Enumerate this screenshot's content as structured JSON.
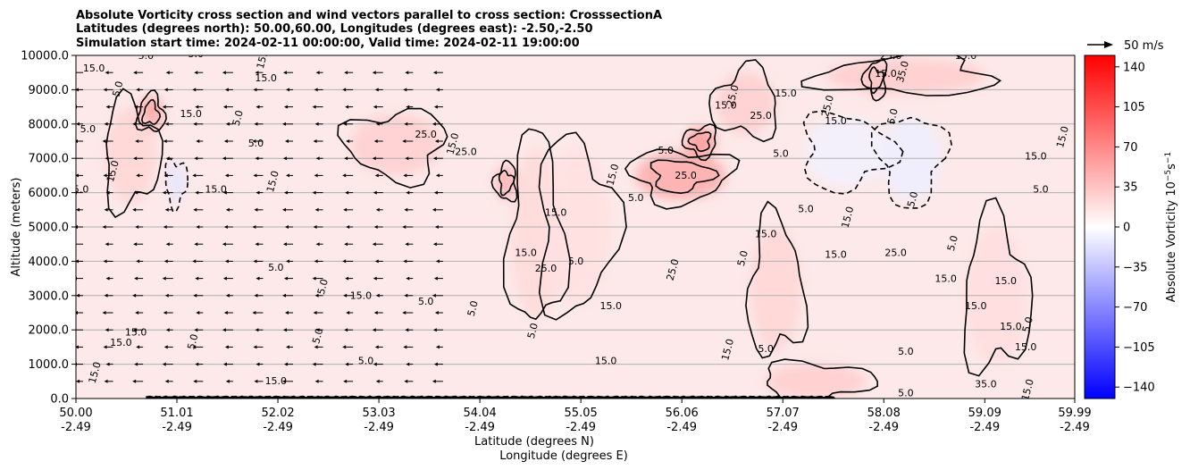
{
  "chart_data": {
    "type": "heatmap",
    "title_lines": [
      "Absolute Vorticity cross section and wind vectors parallel to cross section: CrosssectionA",
      "Latitudes (degrees north): 50.00,60.00, Longitudes (degrees east): -2.50,-2.50",
      "Simulation start time: 2024-02-11 00:00:00, Valid time: 2024-02-11 19:00:00"
    ],
    "xlabel_line1": "Latitude (degrees N)",
    "xlabel_line2": "Longitude (degrees E)",
    "ylabel": "Altitude (meters)",
    "xlim": [
      50.0,
      59.99
    ],
    "ylim": [
      0,
      10000
    ],
    "x_ticks": [
      {
        "lat": "50.00",
        "lon": "-2.49",
        "value": 50.0
      },
      {
        "lat": "51.01",
        "lon": "-2.49",
        "value": 51.01
      },
      {
        "lat": "52.02",
        "lon": "-2.49",
        "value": 52.02
      },
      {
        "lat": "53.03",
        "lon": "-2.49",
        "value": 53.03
      },
      {
        "lat": "54.04",
        "lon": "-2.49",
        "value": 54.04
      },
      {
        "lat": "55.05",
        "lon": "-2.49",
        "value": 55.05
      },
      {
        "lat": "56.06",
        "lon": "-2.49",
        "value": 56.06
      },
      {
        "lat": "57.07",
        "lon": "-2.49",
        "value": 57.07
      },
      {
        "lat": "58.08",
        "lon": "-2.49",
        "value": 58.08
      },
      {
        "lat": "59.09",
        "lon": "-2.49",
        "value": 59.09
      },
      {
        "lat": "59.99",
        "lon": "-2.49",
        "value": 59.99
      }
    ],
    "y_ticks": [
      {
        "label": "0.0",
        "value": 0
      },
      {
        "label": "1000.0",
        "value": 1000
      },
      {
        "label": "2000.0",
        "value": 2000
      },
      {
        "label": "3000.0",
        "value": 3000
      },
      {
        "label": "4000.0",
        "value": 4000
      },
      {
        "label": "5000.0",
        "value": 5000
      },
      {
        "label": "6000.0",
        "value": 6000
      },
      {
        "label": "7000.0",
        "value": 7000
      },
      {
        "label": "8000.0",
        "value": 8000
      },
      {
        "label": "9000.0",
        "value": 9000
      },
      {
        "label": "10000.0",
        "value": 10000
      }
    ],
    "grid": "horizontal",
    "colorbar": {
      "label": "Absolute Vorticity 10",
      "label_exponent": "−5",
      "label_unit": "s",
      "label_unit_exponent": "−1",
      "range": [
        -150,
        150
      ],
      "colormap": "bwr",
      "ticks": [
        {
          "label": "140",
          "value": 140
        },
        {
          "label": "105",
          "value": 105
        },
        {
          "label": "70",
          "value": 70
        },
        {
          "label": "35",
          "value": 35
        },
        {
          "label": "0",
          "value": 0
        },
        {
          "label": "−35",
          "value": -35
        },
        {
          "label": "−70",
          "value": -70
        },
        {
          "label": "−105",
          "value": -105
        },
        {
          "label": "−140",
          "value": -140
        }
      ]
    },
    "quiver_key": {
      "label": "50 m/s",
      "reference_speed": 50
    },
    "wind_vectors": {
      "x_positions": [
        50.0,
        50.3,
        50.6,
        50.9,
        51.2,
        51.5,
        51.8,
        52.1,
        52.4,
        52.7,
        53.0,
        53.3,
        53.6
      ],
      "levels": [
        500,
        1000,
        1500,
        2000,
        2500,
        3000,
        3500,
        4000,
        4500,
        5000,
        5500,
        6000,
        6500,
        7000,
        7500,
        8000,
        8500,
        9000,
        9500
      ],
      "direction": "southward"
    },
    "contour_labels": [
      {
        "text": "15.0",
        "x": 50.18,
        "y": 9530
      },
      {
        "text": "5.0",
        "x": 50.45,
        "y": 9000
      },
      {
        "text": "5.0",
        "x": 50.7,
        "y": 9900
      },
      {
        "text": "5.0",
        "x": 51.2,
        "y": 9950
      },
      {
        "text": "15.0",
        "x": 51.9,
        "y": 9900
      },
      {
        "text": "15.0",
        "x": 52.35,
        "y": 10000
      },
      {
        "text": "5.0",
        "x": 50.12,
        "y": 7760
      },
      {
        "text": "15.0",
        "x": 50.4,
        "y": 6600
      },
      {
        "text": "5.0",
        "x": 50.05,
        "y": 6000
      },
      {
        "text": "15.0",
        "x": 51.9,
        "y": 9250
      },
      {
        "text": "5.0",
        "x": 51.65,
        "y": 8150
      },
      {
        "text": "15.0",
        "x": 51.15,
        "y": 8200
      },
      {
        "text": "15.0",
        "x": 51.4,
        "y": 6000
      },
      {
        "text": "15.0",
        "x": 52.0,
        "y": 6300
      },
      {
        "text": "5.0",
        "x": 51.8,
        "y": 7350
      },
      {
        "text": "5.0",
        "x": 52.0,
        "y": 3730
      },
      {
        "text": "5.0",
        "x": 52.5,
        "y": 3230
      },
      {
        "text": "15.0",
        "x": 52.85,
        "y": 2900
      },
      {
        "text": "25.0",
        "x": 53.5,
        "y": 7600
      },
      {
        "text": "15.0",
        "x": 53.8,
        "y": 7400
      },
      {
        "text": "25.0",
        "x": 53.9,
        "y": 7100
      },
      {
        "text": "15.0",
        "x": 54.8,
        "y": 5320
      },
      {
        "text": "5.0",
        "x": 54.6,
        "y": 1950
      },
      {
        "text": "15.0",
        "x": 54.5,
        "y": 4160
      },
      {
        "text": "25.0",
        "x": 54.7,
        "y": 3700
      },
      {
        "text": "5.0",
        "x": 54.0,
        "y": 2600
      },
      {
        "text": "5.0",
        "x": 55.0,
        "y": 3900
      },
      {
        "text": "15.0",
        "x": 55.35,
        "y": 2600
      },
      {
        "text": "15.0",
        "x": 55.4,
        "y": 6500
      },
      {
        "text": "5.0",
        "x": 55.9,
        "y": 7130
      },
      {
        "text": "5.0",
        "x": 55.6,
        "y": 5750
      },
      {
        "text": "25.0",
        "x": 56.0,
        "y": 3730
      },
      {
        "text": "25.0",
        "x": 56.1,
        "y": 6400
      },
      {
        "text": "15.0",
        "x": 56.5,
        "y": 8450
      },
      {
        "text": "25.0",
        "x": 56.6,
        "y": 8800
      },
      {
        "text": "25.0",
        "x": 56.85,
        "y": 8150
      },
      {
        "text": "15.0",
        "x": 56.9,
        "y": 4700
      },
      {
        "text": "5.0",
        "x": 56.7,
        "y": 4060
      },
      {
        "text": "5.0",
        "x": 57.05,
        "y": 7050
      },
      {
        "text": "15.0",
        "x": 57.1,
        "y": 8800
      },
      {
        "text": "25.0",
        "x": 57.55,
        "y": 8500
      },
      {
        "text": "15.0",
        "x": 57.6,
        "y": 8000
      },
      {
        "text": "5.0",
        "x": 57.3,
        "y": 5430
      },
      {
        "text": "15.0",
        "x": 57.75,
        "y": 5260
      },
      {
        "text": "15.0",
        "x": 57.6,
        "y": 4100
      },
      {
        "text": "15.0",
        "x": 58.1,
        "y": 9370
      },
      {
        "text": "5.0",
        "x": 58.2,
        "y": 8200
      },
      {
        "text": "25.0",
        "x": 58.2,
        "y": 4160
      },
      {
        "text": "25.0",
        "x": 58.15,
        "y": 9900
      },
      {
        "text": "35.0",
        "x": 58.3,
        "y": 9500
      },
      {
        "text": "15.0",
        "x": 58.9,
        "y": 9900
      },
      {
        "text": "25.0",
        "x": 59.45,
        "y": 10000
      },
      {
        "text": "5.0",
        "x": 58.4,
        "y": 5780
      },
      {
        "text": "15.0",
        "x": 58.7,
        "y": 3400
      },
      {
        "text": "15.0",
        "x": 59.0,
        "y": 2600
      },
      {
        "text": "5.0",
        "x": 58.8,
        "y": 4500
      },
      {
        "text": "15.0",
        "x": 59.3,
        "y": 3330
      },
      {
        "text": "15.0",
        "x": 59.35,
        "y": 2000
      },
      {
        "text": "5.0",
        "x": 59.55,
        "y": 2130
      },
      {
        "text": "15.0",
        "x": 59.5,
        "y": 1400
      },
      {
        "text": "5.0",
        "x": 59.65,
        "y": 6000
      },
      {
        "text": "15.0",
        "x": 59.9,
        "y": 7600
      },
      {
        "text": "15.0",
        "x": 59.6,
        "y": 6960
      },
      {
        "text": "5.0",
        "x": 58.3,
        "y": 1280
      },
      {
        "text": "15.0",
        "x": 59.55,
        "y": 230
      },
      {
        "text": "35.0",
        "x": 59.1,
        "y": 330
      },
      {
        "text": "5.0",
        "x": 58.3,
        "y": 60
      },
      {
        "text": "15.0",
        "x": 50.22,
        "y": 730
      },
      {
        "text": "15.0",
        "x": 50.45,
        "y": 1530
      },
      {
        "text": "15.0",
        "x": 50.6,
        "y": 1830
      },
      {
        "text": "5.0",
        "x": 51.2,
        "y": 1630
      },
      {
        "text": "15.0",
        "x": 52.0,
        "y": 420
      },
      {
        "text": "5.0",
        "x": 53.5,
        "y": 2730
      },
      {
        "text": "5.0",
        "x": 52.45,
        "y": 1800
      },
      {
        "text": "5.0",
        "x": 52.9,
        "y": 1000
      },
      {
        "text": "15.0",
        "x": 55.3,
        "y": 1000
      },
      {
        "text": "15.0",
        "x": 56.55,
        "y": 1400
      },
      {
        "text": "5.0",
        "x": 56.9,
        "y": 1350
      }
    ],
    "fill_blobs": [
      {
        "x": 50.75,
        "y": 8300,
        "rx": 0.12,
        "ry": 500,
        "value": 55
      },
      {
        "x": 50.55,
        "y": 7100,
        "rx": 0.25,
        "ry": 1400,
        "value": 25
      },
      {
        "x": 51.0,
        "y": 6300,
        "rx": 0.1,
        "ry": 600,
        "value": -15
      },
      {
        "x": 53.2,
        "y": 7400,
        "rx": 0.45,
        "ry": 900,
        "value": 28
      },
      {
        "x": 54.3,
        "y": 6300,
        "rx": 0.1,
        "ry": 500,
        "value": 45
      },
      {
        "x": 54.6,
        "y": 4800,
        "rx": 0.25,
        "ry": 2500,
        "value": 22
      },
      {
        "x": 55.0,
        "y": 5000,
        "rx": 0.35,
        "ry": 2300,
        "value": 18
      },
      {
        "x": 56.05,
        "y": 6500,
        "rx": 0.45,
        "ry": 700,
        "value": 50
      },
      {
        "x": 56.25,
        "y": 7500,
        "rx": 0.15,
        "ry": 400,
        "value": 60
      },
      {
        "x": 56.7,
        "y": 8600,
        "rx": 0.3,
        "ry": 900,
        "value": 28
      },
      {
        "x": 57.0,
        "y": 3200,
        "rx": 0.25,
        "ry": 1800,
        "value": 25
      },
      {
        "x": 57.7,
        "y": 7200,
        "rx": 0.4,
        "ry": 1000,
        "value": -8
      },
      {
        "x": 58.35,
        "y": 7000,
        "rx": 0.3,
        "ry": 1200,
        "value": -10
      },
      {
        "x": 58.0,
        "y": 9300,
        "rx": 0.1,
        "ry": 500,
        "value": 55
      },
      {
        "x": 58.3,
        "y": 9400,
        "rx": 0.8,
        "ry": 500,
        "value": 30
      },
      {
        "x": 59.2,
        "y": 3000,
        "rx": 0.3,
        "ry": 2000,
        "value": 20
      },
      {
        "x": 57.4,
        "y": 500,
        "rx": 0.5,
        "ry": 500,
        "value": 30
      }
    ]
  }
}
